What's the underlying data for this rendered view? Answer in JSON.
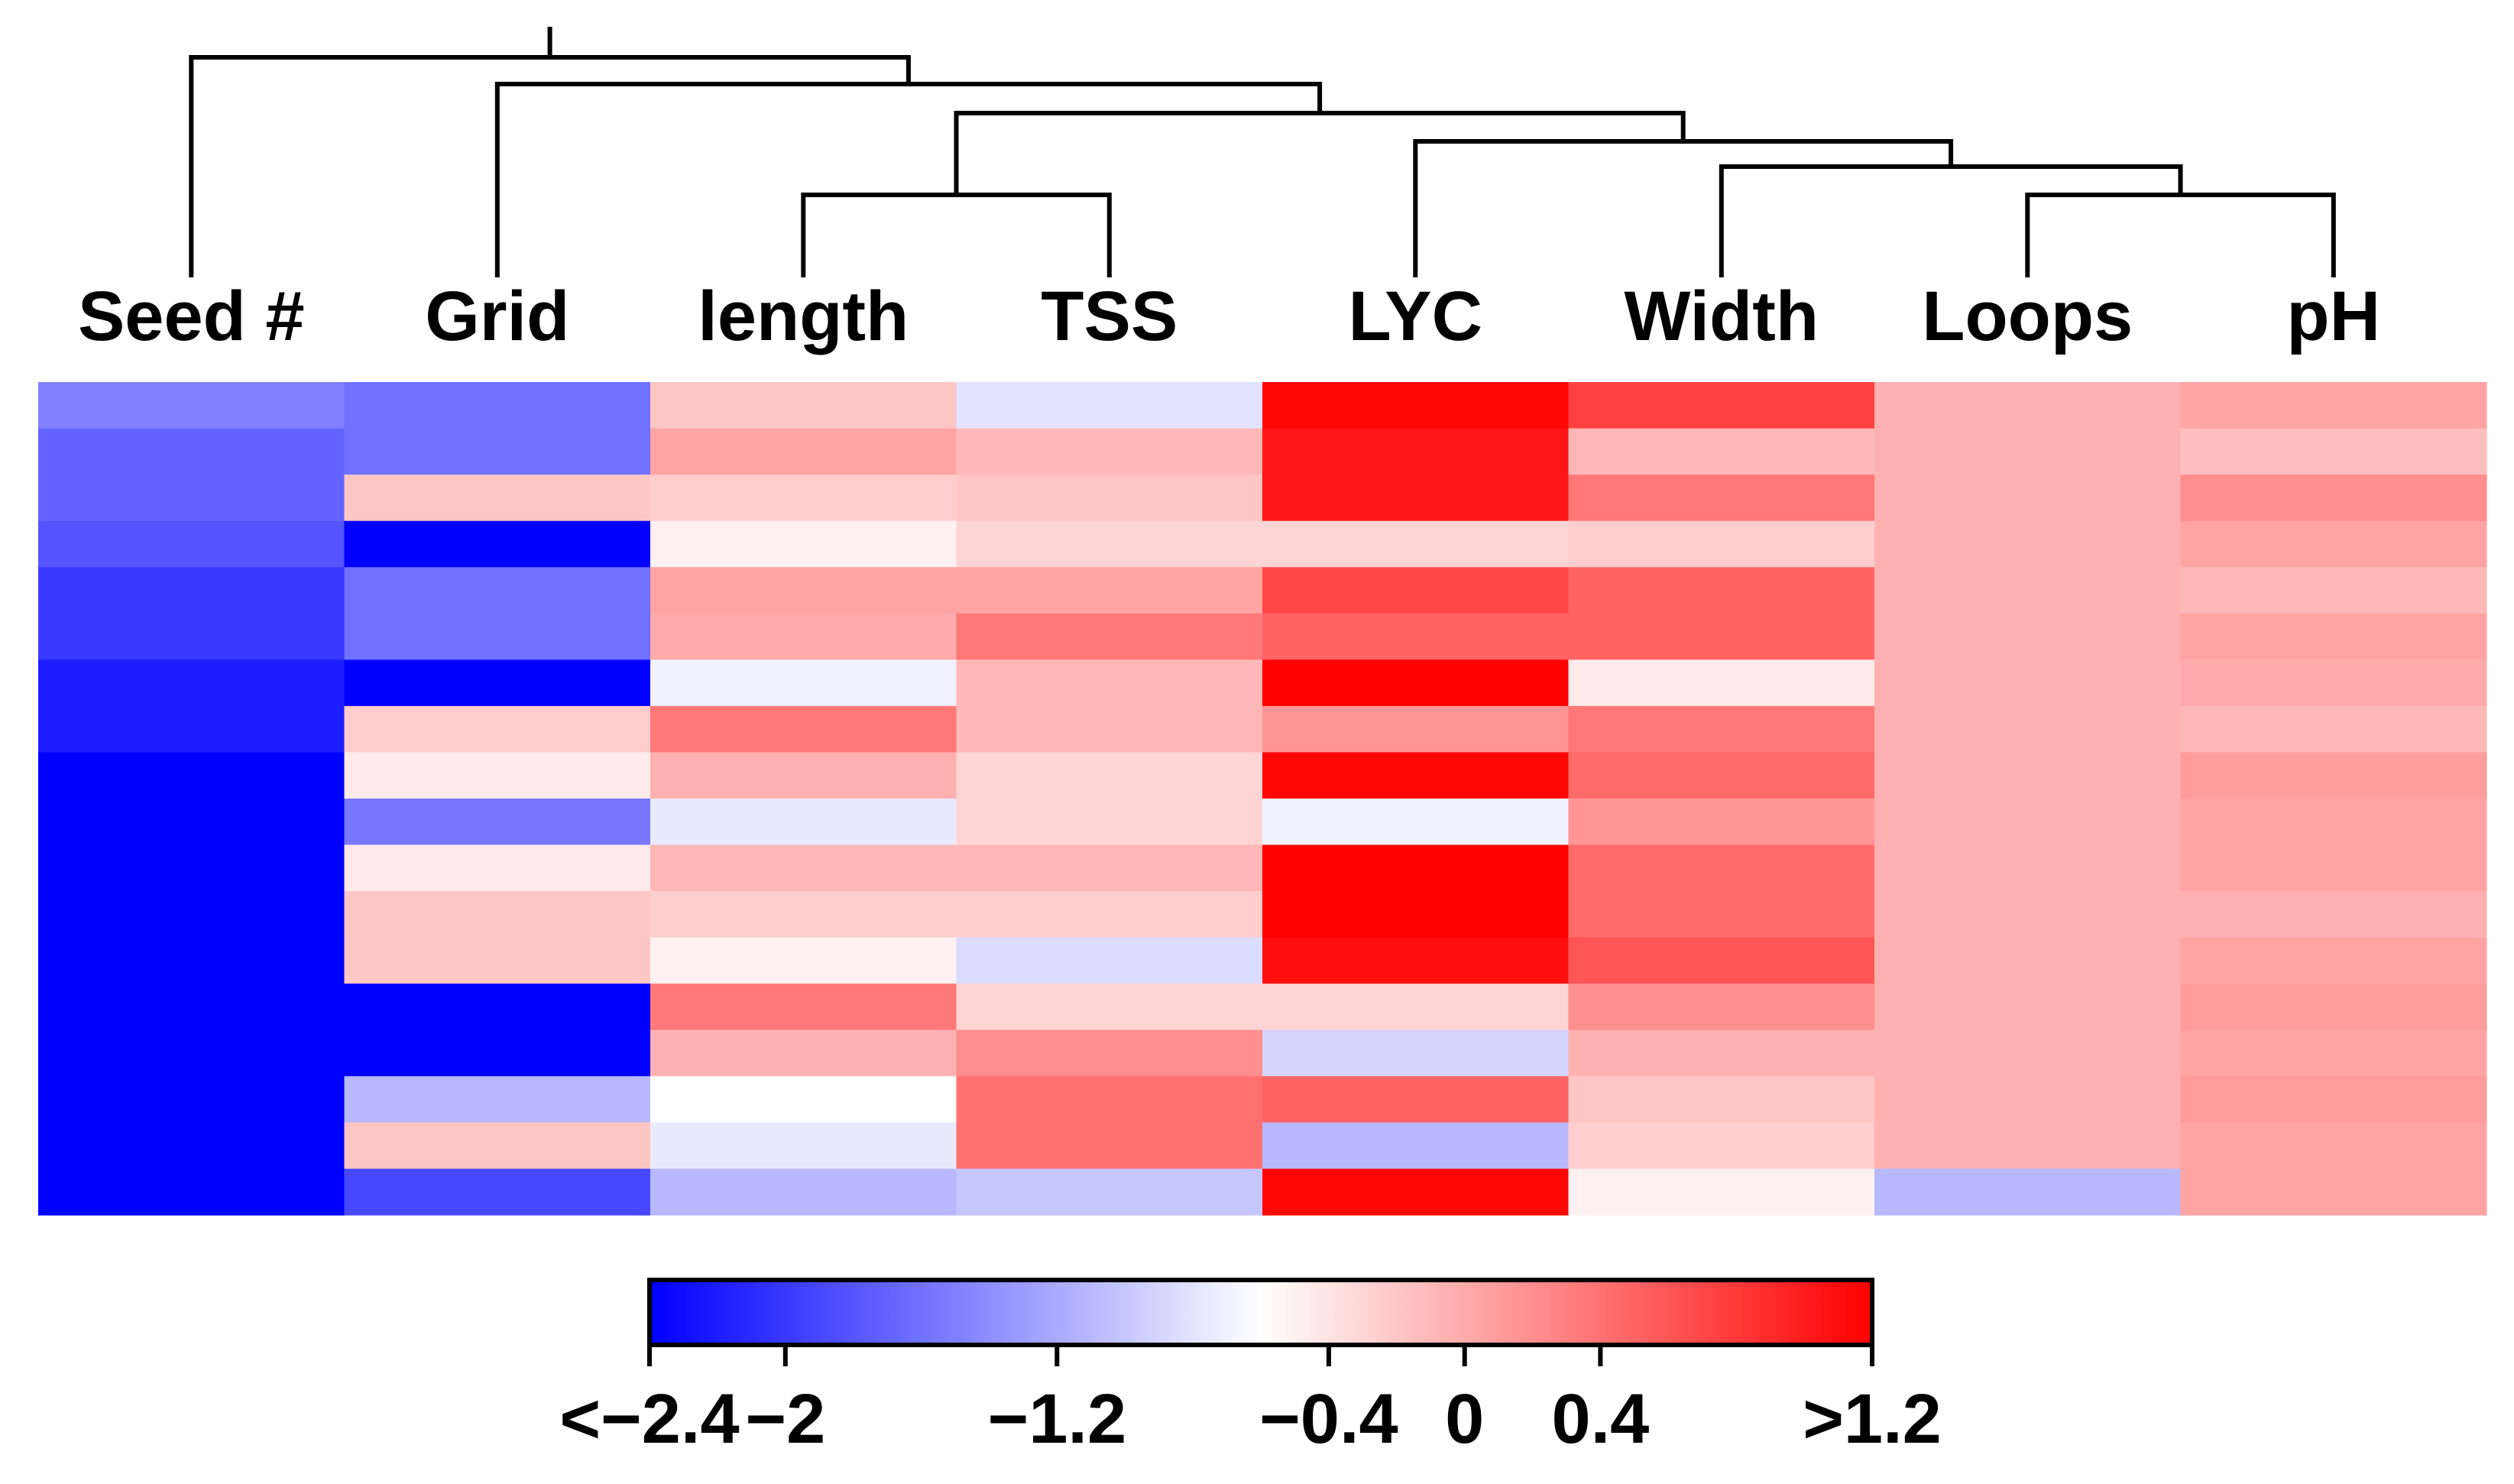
{
  "chart_data": {
    "type": "heatmap",
    "title": "",
    "columns": [
      "Seed #",
      "Grid",
      "length",
      "TSS",
      "LYC",
      "Width",
      "Loops",
      "pH"
    ],
    "row_count": 18,
    "value_range": [
      -2.4,
      1.2
    ],
    "colorscale": {
      "low": "#0000ff",
      "mid": "#ffffff",
      "high": "#ff0000",
      "mid_value": -0.6
    },
    "values": [
      [
        -1.5,
        -1.6,
        -0.2,
        -0.8,
        1.15,
        0.75,
        -0.05,
        0.05
      ],
      [
        -1.7,
        -1.6,
        0.05,
        -0.1,
        1.05,
        -0.1,
        -0.05,
        -0.15
      ],
      [
        -1.7,
        -0.2,
        -0.25,
        -0.2,
        1.05,
        0.35,
        -0.05,
        0.2
      ],
      [
        -1.8,
        -2.4,
        -0.5,
        -0.3,
        -0.3,
        -0.25,
        -0.05,
        0.05
      ],
      [
        -2.0,
        -1.6,
        0.05,
        0.05,
        0.7,
        0.5,
        -0.05,
        -0.1
      ],
      [
        -2.0,
        -1.6,
        0.0,
        0.35,
        0.5,
        0.5,
        -0.05,
        0.05
      ],
      [
        -2.2,
        -2.4,
        -0.7,
        -0.1,
        1.2,
        -0.45,
        -0.05,
        0.0
      ],
      [
        -2.2,
        -0.25,
        0.35,
        -0.1,
        0.15,
        0.35,
        -0.05,
        -0.1
      ],
      [
        -2.4,
        -0.45,
        -0.05,
        -0.3,
        1.15,
        0.45,
        -0.05,
        0.1
      ],
      [
        -2.4,
        -1.55,
        -0.75,
        -0.3,
        -0.7,
        0.15,
        -0.05,
        0.05
      ],
      [
        -2.4,
        -0.45,
        -0.1,
        -0.1,
        1.2,
        0.45,
        -0.05,
        0.05
      ],
      [
        -2.4,
        -0.2,
        -0.25,
        -0.25,
        1.2,
        0.45,
        -0.05,
        -0.05
      ],
      [
        -2.4,
        -0.2,
        -0.5,
        -0.85,
        1.1,
        0.6,
        -0.05,
        0.05
      ],
      [
        -2.4,
        -2.4,
        0.35,
        -0.3,
        -0.3,
        0.2,
        -0.05,
        0.1
      ],
      [
        -2.4,
        -2.4,
        -0.05,
        0.2,
        -0.9,
        -0.05,
        -0.05,
        0.05
      ],
      [
        -2.4,
        -1.1,
        -0.6,
        0.4,
        0.5,
        -0.2,
        -0.05,
        0.1
      ],
      [
        -2.4,
        -0.2,
        -0.75,
        0.4,
        -1.1,
        -0.25,
        -0.05,
        0.05
      ],
      [
        -2.4,
        -1.9,
        -1.1,
        -1.0,
        1.15,
        -0.5,
        -1.1,
        0.05
      ]
    ],
    "dendrogram_merges": [
      {
        "left": "TSS_length",
        "children": [
          "length",
          "TSS"
        ]
      },
      {
        "left": "Loops_pH",
        "children": [
          "Loops",
          "pH"
        ]
      },
      {
        "left": "Width_cluster",
        "children": [
          "Width",
          "Loops_pH"
        ]
      },
      {
        "left": "LYC_cluster",
        "children": [
          "LYC",
          "Width_cluster"
        ]
      },
      {
        "left": "mid_cluster",
        "children": [
          "TSS_length",
          "LYC_cluster"
        ]
      },
      {
        "left": "grid_cluster",
        "children": [
          "Grid",
          "mid_cluster"
        ]
      },
      {
        "left": "root",
        "children": [
          "Seed #",
          "grid_cluster"
        ]
      }
    ],
    "colorbar": {
      "tick_labels": [
        "<−2.4",
        "−2",
        "−1.2",
        "−0.4",
        "0",
        "0.4",
        ">1.2"
      ],
      "tick_values": [
        -2.4,
        -2.0,
        -1.2,
        -0.4,
        0.0,
        0.4,
        1.2
      ]
    }
  }
}
